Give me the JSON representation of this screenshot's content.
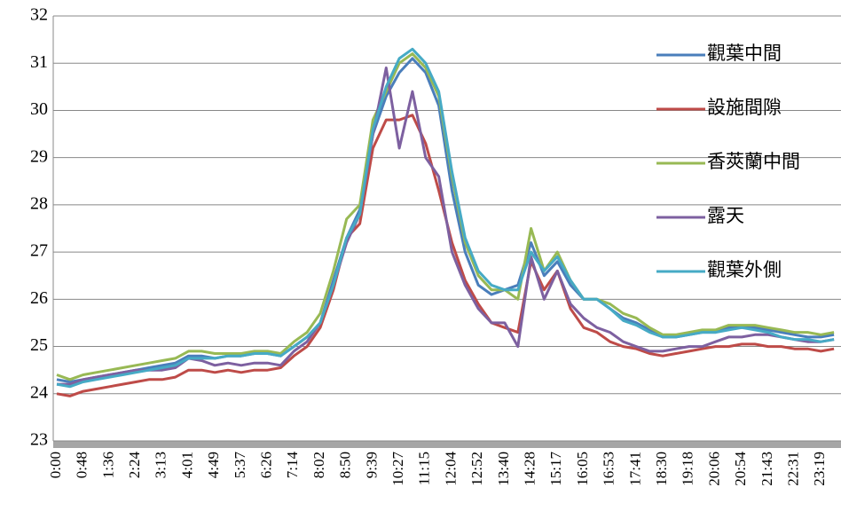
{
  "chart_data": {
    "type": "line",
    "categories": [
      "0:00",
      null,
      "0:48",
      null,
      "1:36",
      null,
      "2:24",
      null,
      "3:13",
      null,
      "4:01",
      null,
      "4:49",
      null,
      "5:37",
      null,
      "6:26",
      null,
      "7:14",
      null,
      "8:02",
      null,
      "8:50",
      null,
      "9:39",
      null,
      "10:27",
      null,
      "11:15",
      null,
      "12:04",
      null,
      "12:52",
      null,
      "13:40",
      null,
      "14:28",
      null,
      "15:17",
      null,
      "16:05",
      null,
      "16:53",
      null,
      "17:41",
      null,
      "18:30",
      null,
      "19:18",
      null,
      "20:06",
      null,
      "20:54",
      null,
      "21:43",
      null,
      "22:31",
      null,
      "23:19",
      null
    ],
    "ylim": [
      23,
      32
    ],
    "yticks": [
      23,
      24,
      25,
      26,
      27,
      28,
      29,
      30,
      31,
      32
    ],
    "grid": true,
    "series": [
      {
        "name": "觀葉中間",
        "color": "#4a7ebb",
        "values": [
          24.3,
          24.25,
          24.3,
          24.35,
          24.4,
          24.45,
          24.5,
          24.55,
          24.6,
          24.65,
          24.8,
          24.8,
          24.75,
          24.8,
          24.8,
          24.85,
          24.85,
          24.8,
          25.0,
          25.2,
          25.5,
          26.4,
          27.3,
          27.9,
          29.5,
          30.3,
          30.8,
          31.1,
          30.8,
          30.1,
          28.3,
          27.0,
          26.3,
          26.1,
          26.2,
          26.3,
          27.2,
          26.5,
          26.8,
          26.3,
          26.0,
          26.0,
          25.8,
          25.6,
          25.5,
          25.35,
          25.2,
          25.2,
          25.25,
          25.3,
          25.3,
          25.4,
          25.4,
          25.4,
          25.35,
          25.3,
          25.25,
          25.2,
          25.2,
          25.25
        ]
      },
      {
        "name": "設施間隙",
        "color": "#be4b48",
        "values": [
          24.0,
          23.95,
          24.05,
          24.1,
          24.15,
          24.2,
          24.25,
          24.3,
          24.3,
          24.35,
          24.5,
          24.5,
          24.45,
          24.5,
          24.45,
          24.5,
          24.5,
          24.55,
          24.8,
          25.0,
          25.4,
          26.2,
          27.3,
          27.6,
          29.2,
          29.8,
          29.8,
          29.9,
          29.3,
          28.3,
          27.2,
          26.4,
          25.9,
          25.5,
          25.4,
          25.3,
          26.8,
          26.2,
          26.6,
          25.8,
          25.4,
          25.3,
          25.1,
          25.0,
          24.95,
          24.85,
          24.8,
          24.85,
          24.9,
          24.95,
          25.0,
          25.0,
          25.05,
          25.05,
          25.0,
          25.0,
          24.95,
          24.95,
          24.9,
          24.95
        ]
      },
      {
        "name": "香莢蘭中間",
        "color": "#98b954",
        "values": [
          24.4,
          24.3,
          24.4,
          24.45,
          24.5,
          24.55,
          24.6,
          24.65,
          24.7,
          24.75,
          24.9,
          24.9,
          24.85,
          24.85,
          24.85,
          24.9,
          24.9,
          24.85,
          25.1,
          25.3,
          25.7,
          26.6,
          27.7,
          28.0,
          29.8,
          30.4,
          31.0,
          31.2,
          30.9,
          30.3,
          28.6,
          27.2,
          26.5,
          26.2,
          26.2,
          26.0,
          27.5,
          26.6,
          27.0,
          26.4,
          26.0,
          26.0,
          25.9,
          25.7,
          25.6,
          25.4,
          25.25,
          25.25,
          25.3,
          25.35,
          25.35,
          25.45,
          25.45,
          25.45,
          25.4,
          25.35,
          25.3,
          25.3,
          25.25,
          25.3
        ]
      },
      {
        "name": "露天",
        "color": "#7d60a0",
        "values": [
          24.2,
          24.2,
          24.3,
          24.35,
          24.4,
          24.45,
          24.5,
          24.5,
          24.5,
          24.55,
          24.75,
          24.7,
          24.6,
          24.65,
          24.6,
          24.65,
          24.65,
          24.6,
          24.9,
          25.1,
          25.5,
          26.3,
          27.2,
          27.8,
          29.5,
          30.9,
          29.2,
          30.4,
          29.0,
          28.6,
          27.0,
          26.3,
          25.8,
          25.5,
          25.5,
          25.0,
          26.9,
          26.0,
          26.6,
          25.9,
          25.6,
          25.4,
          25.3,
          25.1,
          25.0,
          24.9,
          24.9,
          24.95,
          25.0,
          25.0,
          25.1,
          25.2,
          25.2,
          25.25,
          25.25,
          25.2,
          25.15,
          25.1,
          25.1,
          25.15
        ]
      },
      {
        "name": "觀葉外側",
        "color": "#46aac5",
        "values": [
          24.2,
          24.15,
          24.25,
          24.3,
          24.35,
          24.4,
          24.45,
          24.5,
          24.55,
          24.6,
          24.75,
          24.75,
          24.75,
          24.8,
          24.8,
          24.85,
          24.85,
          24.8,
          25.0,
          25.2,
          25.5,
          26.3,
          27.3,
          27.8,
          29.6,
          30.5,
          31.1,
          31.3,
          31.0,
          30.4,
          28.7,
          27.3,
          26.6,
          26.3,
          26.2,
          26.2,
          27.0,
          26.6,
          26.9,
          26.4,
          26.0,
          26.0,
          25.8,
          25.55,
          25.45,
          25.3,
          25.2,
          25.2,
          25.25,
          25.3,
          25.3,
          25.35,
          25.4,
          25.35,
          25.3,
          25.2,
          25.15,
          25.15,
          25.1,
          25.15
        ]
      }
    ]
  }
}
